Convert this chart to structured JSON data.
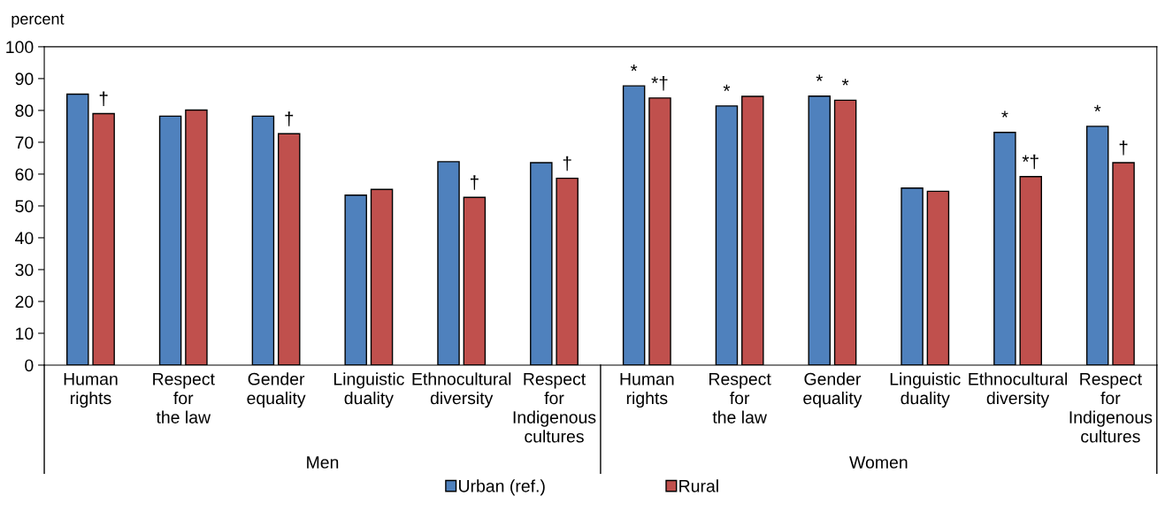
{
  "chart_data": {
    "type": "bar",
    "ylabel": "percent",
    "categories": [
      "Human\nrights",
      "Respect\nfor\nthe law",
      "Gender\nequality",
      "Linguistic\nduality",
      "Ethnocultural\ndiversity",
      "Respect\nfor\nIndigenous\ncultures",
      "Human\nrights",
      "Respect\nfor\nthe law",
      "Gender\nequality",
      "Linguistic\nduality",
      "Ethnocultural\ndiversity",
      "Respect\nfor\nIndigenous\ncultures"
    ],
    "series": [
      {
        "name": "Urban (ref.)",
        "color": "#4f81bd",
        "values": [
          85.1,
          78.2,
          78.2,
          53.4,
          63.9,
          63.6,
          87.7,
          81.4,
          84.5,
          55.6,
          73.1,
          75.0
        ],
        "value_labels": [
          null,
          null,
          null,
          null,
          null,
          null,
          "*",
          "*",
          "*",
          null,
          "*",
          "*"
        ]
      },
      {
        "name": "Rural",
        "color": "#c0504d",
        "values": [
          79.0,
          80.1,
          72.7,
          55.2,
          52.7,
          58.7,
          83.9,
          84.4,
          83.2,
          54.6,
          59.2,
          63.6
        ],
        "value_labels": [
          "†",
          null,
          "†",
          null,
          "†",
          "†",
          "*†",
          null,
          "*",
          null,
          "*†",
          "†"
        ]
      }
    ],
    "annotations": [
      "Men",
      "Women"
    ],
    "ylim": [
      0,
      100
    ],
    "yticks": [
      0,
      10,
      20,
      30,
      40,
      50,
      60,
      70,
      80,
      90,
      100
    ],
    "grid": false,
    "legend": "bottom"
  }
}
